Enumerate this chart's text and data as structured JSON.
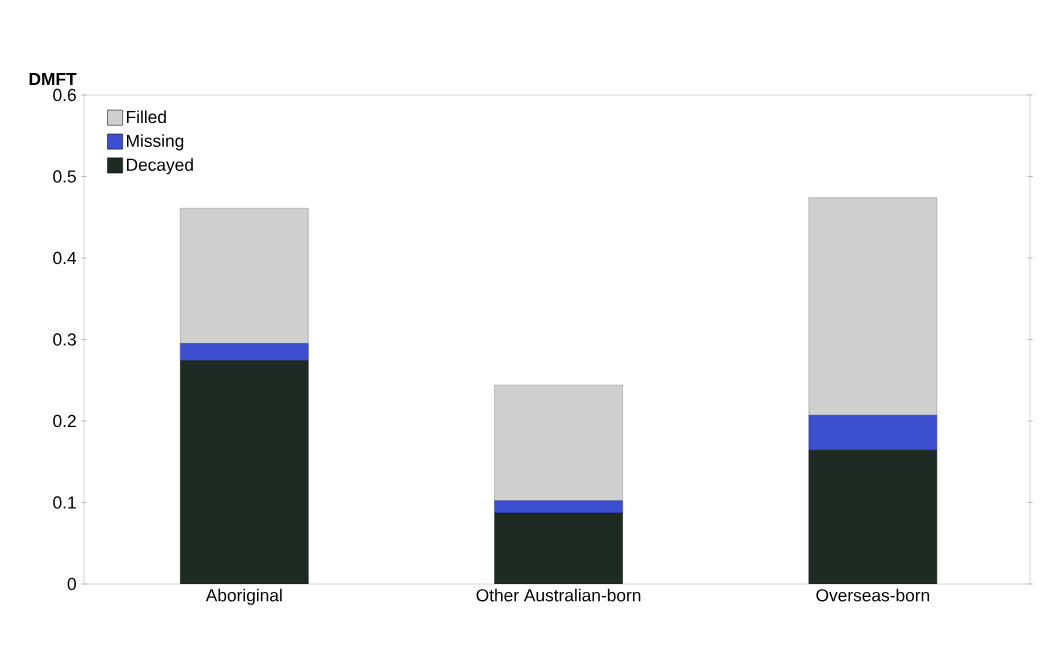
{
  "chart_data": {
    "type": "bar",
    "stacked": true,
    "ylabel": "DMFT",
    "categories": [
      "Aboriginal",
      "Other Australian-born",
      "Overseas-born"
    ],
    "series": [
      {
        "name": "Decayed",
        "color": "#1e2a24",
        "values": [
          0.274,
          0.087,
          0.164
        ]
      },
      {
        "name": "Missing",
        "color": "#3b4fcf",
        "values": [
          0.021,
          0.015,
          0.043
        ]
      },
      {
        "name": "Filled",
        "color": "#cfcfcf",
        "values": [
          0.166,
          0.142,
          0.267
        ]
      }
    ],
    "ylim": [
      0,
      0.6
    ],
    "yticks": [
      0,
      0.1,
      0.2,
      0.3,
      0.4,
      0.5,
      0.6
    ],
    "grid": false,
    "legend": "top left"
  }
}
